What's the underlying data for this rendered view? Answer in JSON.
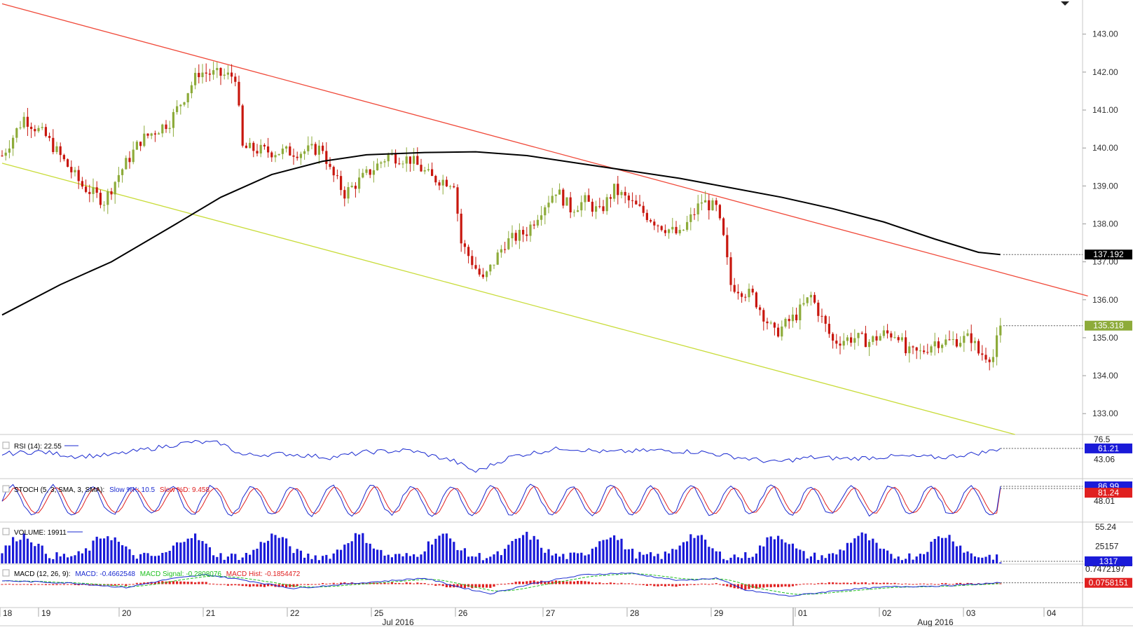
{
  "colors": {
    "up": "#8dab3a",
    "down": "#c8170e",
    "ma": "#000000",
    "upper_channel": "#f04a3a",
    "lower_channel": "#c9dc3a",
    "rsi": "#1a2ad0",
    "stoch_k": "#1a2ad0",
    "stoch_d": "#e02020",
    "volume": "#1a1ad8",
    "macd": "#1a2ad0",
    "macd_signal": "#20c020",
    "macd_hist": "#e02020"
  },
  "chart_data": {
    "type": "candlestick",
    "price_axis": {
      "range": [
        132.45,
        143.9
      ],
      "ticks": [
        "143.00",
        "142.00",
        "141.00",
        "140.00",
        "139.00",
        "138.00",
        "137.00",
        "136.00",
        "135.00",
        "134.00",
        "133.00"
      ]
    },
    "day_labels": [
      "18",
      "19",
      "20",
      "21",
      "22",
      "25",
      "26",
      "27",
      "28",
      "29",
      "01",
      "02",
      "03",
      "04"
    ],
    "month_labels": [
      "Jul 2016",
      "Aug 2016"
    ],
    "price_markers": {
      "ma": {
        "label": "137.192",
        "value": 137.192
      },
      "close": {
        "label": "135.318",
        "value": 135.318
      }
    },
    "anchors": [
      [
        0,
        139.8
      ],
      [
        6,
        140.8
      ],
      [
        12,
        140.3
      ],
      [
        22,
        139.0
      ],
      [
        28,
        138.6
      ],
      [
        32,
        139.3
      ],
      [
        38,
        140.2
      ],
      [
        46,
        140.7
      ],
      [
        54,
        142.0
      ],
      [
        62,
        141.9
      ],
      [
        64,
        141.9
      ],
      [
        66,
        140.0
      ],
      [
        74,
        139.9
      ],
      [
        82,
        139.9
      ],
      [
        88,
        140.0
      ],
      [
        90,
        139.4
      ],
      [
        94,
        138.8
      ],
      [
        100,
        139.3
      ],
      [
        106,
        139.8
      ],
      [
        112,
        139.7
      ],
      [
        118,
        139.2
      ],
      [
        124,
        139.1
      ],
      [
        126,
        137.5
      ],
      [
        132,
        136.5
      ],
      [
        138,
        137.5
      ],
      [
        144,
        137.8
      ],
      [
        148,
        138.4
      ],
      [
        152,
        138.9
      ],
      [
        156,
        138.4
      ],
      [
        160,
        138.6
      ],
      [
        164,
        138.3
      ],
      [
        168,
        138.9
      ],
      [
        172,
        138.6
      ],
      [
        176,
        138.3
      ],
      [
        180,
        138.0
      ],
      [
        186,
        137.7
      ],
      [
        192,
        138.6
      ],
      [
        196,
        138.4
      ],
      [
        198,
        137.6
      ],
      [
        200,
        136.4
      ],
      [
        206,
        136.1
      ],
      [
        212,
        135.1
      ],
      [
        218,
        135.6
      ],
      [
        222,
        136.1
      ],
      [
        228,
        134.9
      ],
      [
        234,
        135.0
      ],
      [
        238,
        134.9
      ],
      [
        242,
        135.1
      ],
      [
        246,
        135.1
      ],
      [
        248,
        134.6
      ],
      [
        252,
        134.6
      ],
      [
        256,
        134.9
      ],
      [
        260,
        134.9
      ],
      [
        266,
        135.0
      ],
      [
        268,
        134.6
      ],
      [
        272,
        134.5
      ],
      [
        274,
        135.32
      ]
    ],
    "moving_average": {
      "label": "137.192",
      "points": [
        [
          0,
          135.6
        ],
        [
          16,
          136.4
        ],
        [
          30,
          137.0
        ],
        [
          46,
          137.9
        ],
        [
          60,
          138.7
        ],
        [
          74,
          139.3
        ],
        [
          88,
          139.65
        ],
        [
          100,
          139.82
        ],
        [
          116,
          139.88
        ],
        [
          130,
          139.9
        ],
        [
          144,
          139.8
        ],
        [
          158,
          139.6
        ],
        [
          172,
          139.4
        ],
        [
          186,
          139.2
        ],
        [
          200,
          138.95
        ],
        [
          214,
          138.7
        ],
        [
          228,
          138.4
        ],
        [
          242,
          138.05
        ],
        [
          256,
          137.6
        ],
        [
          268,
          137.25
        ],
        [
          274,
          137.192
        ]
      ]
    },
    "channel": {
      "upper": [
        [
          0,
          143.8
        ],
        [
          298,
          136.1
        ]
      ],
      "lower": [
        [
          0,
          139.6
        ],
        [
          278,
          132.45
        ]
      ]
    },
    "rsi": {
      "label": "RSI (14): 22.55",
      "ticks": [
        "76.5",
        "43.06"
      ],
      "marker": "61.21",
      "range": [
        15,
        80
      ],
      "anchors": [
        [
          0,
          52
        ],
        [
          10,
          56
        ],
        [
          20,
          48
        ],
        [
          30,
          50
        ],
        [
          40,
          60
        ],
        [
          52,
          72
        ],
        [
          60,
          70
        ],
        [
          66,
          50
        ],
        [
          78,
          52
        ],
        [
          90,
          46
        ],
        [
          100,
          55
        ],
        [
          112,
          58
        ],
        [
          124,
          40
        ],
        [
          130,
          22
        ],
        [
          140,
          48
        ],
        [
          154,
          62
        ],
        [
          166,
          55
        ],
        [
          180,
          58
        ],
        [
          192,
          55
        ],
        [
          200,
          48
        ],
        [
          212,
          38
        ],
        [
          222,
          46
        ],
        [
          232,
          44
        ],
        [
          246,
          48
        ],
        [
          258,
          46
        ],
        [
          270,
          55
        ],
        [
          274,
          61.21
        ]
      ]
    },
    "stoch": {
      "label_prefix": "STOCH (5, 3, SMA, 3, SMA):",
      "k_label": "Slow %K: 10.5",
      "d_label": "Slow %D: 9.458",
      "ticks": [
        "48.01",
        "55.24"
      ],
      "markers": [
        "86.99",
        "81.24"
      ],
      "cycles": 25,
      "marker_values": [
        86.99,
        81.24
      ]
    },
    "volume": {
      "label": "VOLUME: 19911",
      "ticks": [
        "25157"
      ],
      "marker": "1317",
      "ceiling": 55724
    },
    "macd": {
      "label_prefix": "MACD (12, 26, 9):",
      "macd_label": "MACD: -0.4662548",
      "signal_label": "MACD Signal: -0.2808076",
      "hist_label": "MACD Hist: -0.1854472",
      "ticks": [
        "0.7472197"
      ],
      "marker": "0.0758151",
      "range": [
        -1.2,
        1.0
      ],
      "anchors": [
        [
          0,
          0.2
        ],
        [
          20,
          0.05
        ],
        [
          34,
          -0.2
        ],
        [
          46,
          0.3
        ],
        [
          56,
          0.55
        ],
        [
          66,
          0.25
        ],
        [
          80,
          -0.25
        ],
        [
          100,
          0.1
        ],
        [
          116,
          0.35
        ],
        [
          126,
          -0.2
        ],
        [
          134,
          -0.55
        ],
        [
          146,
          0.05
        ],
        [
          160,
          0.55
        ],
        [
          172,
          0.65
        ],
        [
          186,
          0.2
        ],
        [
          196,
          0.35
        ],
        [
          204,
          -0.35
        ],
        [
          216,
          -0.7
        ],
        [
          230,
          -0.35
        ],
        [
          244,
          -0.15
        ],
        [
          258,
          -0.1
        ],
        [
          274,
          0.076
        ]
      ]
    }
  }
}
